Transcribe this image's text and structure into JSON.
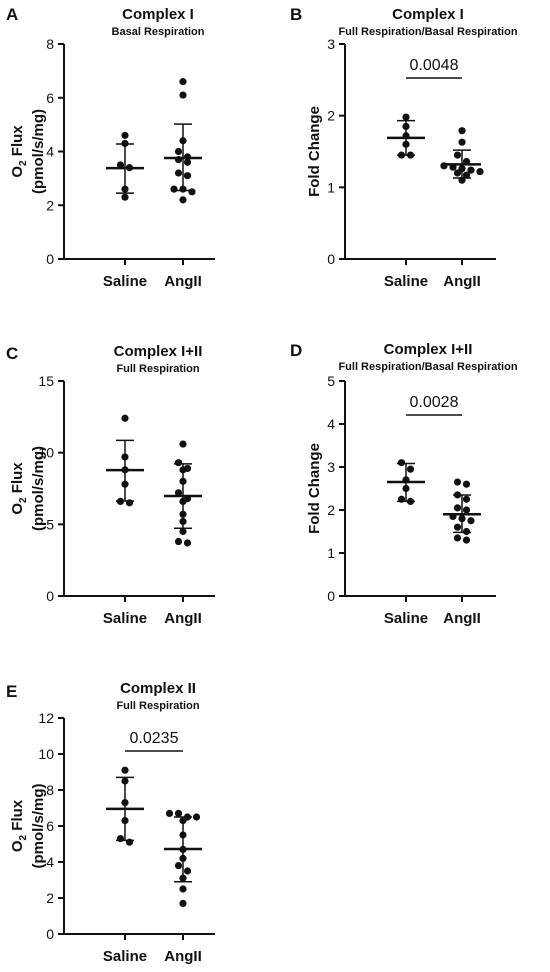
{
  "chart_data": [
    {
      "panel": "A",
      "type": "scatter",
      "title": "Complex I",
      "subtitle": "Basal Respiration",
      "ylabel_line1": "O2 Flux",
      "ylabel_line2": "(pmol/s/mg)",
      "ylim": [
        0,
        8
      ],
      "yticks": [
        "0",
        "2",
        "4",
        "6",
        "8"
      ],
      "categories": [
        "Saline",
        "AngII"
      ],
      "series": [
        {
          "values": [
            4.6,
            4.3,
            3.5,
            2.6,
            2.3,
            3.4
          ],
          "mean": 3.38,
          "sd_low": 2.45,
          "sd_high": 4.28
        },
        {
          "values": [
            6.6,
            6.1,
            4.4,
            4.0,
            3.8,
            3.7,
            3.6,
            3.2,
            3.1,
            2.6,
            2.6,
            2.5,
            2.2
          ],
          "mean": 3.76,
          "sd_low": 2.55,
          "sd_high": 5.02
        }
      ],
      "p_value": ""
    },
    {
      "panel": "B",
      "type": "scatter",
      "title": "Complex I",
      "subtitle": "Full Respiration/Basal Respiration",
      "ylabel_line1": "Fold Change",
      "ylabel_line2": "",
      "ylim": [
        0,
        3
      ],
      "yticks": [
        "0",
        "1",
        "2",
        "3"
      ],
      "categories": [
        "Saline",
        "AngII"
      ],
      "series": [
        {
          "values": [
            1.98,
            1.85,
            1.72,
            1.6,
            1.45,
            1.45
          ],
          "mean": 1.69,
          "sd_low": 1.45,
          "sd_high": 1.93
        },
        {
          "values": [
            1.79,
            1.63,
            1.45,
            1.36,
            1.3,
            1.28,
            1.26,
            1.24,
            1.22,
            1.2,
            1.17,
            1.1
          ],
          "mean": 1.32,
          "sd_low": 1.13,
          "sd_high": 1.52
        }
      ],
      "p_value": "0.0048"
    },
    {
      "panel": "C",
      "type": "scatter",
      "title": "Complex I+II",
      "subtitle": "Full Respiration",
      "ylabel_line1": "O2 Flux",
      "ylabel_line2": "(pmol/s/mg)",
      "ylim": [
        0,
        15
      ],
      "yticks": [
        "0",
        "5",
        "10",
        "15"
      ],
      "categories": [
        "Saline",
        "AngII"
      ],
      "series": [
        {
          "values": [
            12.4,
            9.7,
            8.8,
            7.8,
            6.6,
            6.5
          ],
          "mean": 8.78,
          "sd_low": 6.63,
          "sd_high": 10.86
        },
        {
          "values": [
            10.6,
            9.3,
            8.9,
            8.8,
            8.0,
            7.2,
            6.8,
            6.6,
            5.7,
            5.2,
            4.5,
            3.8,
            3.7
          ],
          "mean": 6.98,
          "sd_low": 4.73,
          "sd_high": 9.22
        }
      ],
      "p_value": ""
    },
    {
      "panel": "D",
      "type": "scatter",
      "title": "Complex I+II",
      "subtitle": "Full Respiration/Basal Respiration",
      "ylabel_line1": "Fold Change",
      "ylabel_line2": "",
      "ylim": [
        0,
        5
      ],
      "yticks": [
        "0",
        "1",
        "2",
        "3",
        "4",
        "5"
      ],
      "categories": [
        "Saline",
        "AngII"
      ],
      "series": [
        {
          "values": [
            3.1,
            2.95,
            2.7,
            2.5,
            2.25,
            2.2
          ],
          "mean": 2.65,
          "sd_low": 2.2,
          "sd_high": 3.08
        },
        {
          "values": [
            2.65,
            2.6,
            2.35,
            2.25,
            2.05,
            2.0,
            1.85,
            1.8,
            1.75,
            1.6,
            1.5,
            1.35,
            1.3
          ],
          "mean": 1.9,
          "sd_low": 1.48,
          "sd_high": 2.35
        }
      ],
      "p_value": "0.0028"
    },
    {
      "panel": "E",
      "type": "scatter",
      "title": "Complex II",
      "subtitle": "Full Respiration",
      "ylabel_line1": "O2 Flux",
      "ylabel_line2": "(pmol/s/mg)",
      "ylim": [
        0,
        12
      ],
      "yticks": [
        "0",
        "2",
        "4",
        "6",
        "8",
        "10",
        "12"
      ],
      "categories": [
        "Saline",
        "AngII"
      ],
      "series": [
        {
          "values": [
            9.1,
            8.5,
            7.3,
            6.3,
            5.3,
            5.1
          ],
          "mean": 6.95,
          "sd_low": 5.2,
          "sd_high": 8.7
        },
        {
          "values": [
            6.7,
            6.7,
            6.5,
            6.5,
            6.3,
            5.5,
            4.7,
            4.2,
            3.8,
            3.5,
            3.1,
            2.5,
            1.7
          ],
          "mean": 4.72,
          "sd_low": 2.9,
          "sd_high": 6.5
        }
      ],
      "p_value": "0.0235"
    }
  ]
}
